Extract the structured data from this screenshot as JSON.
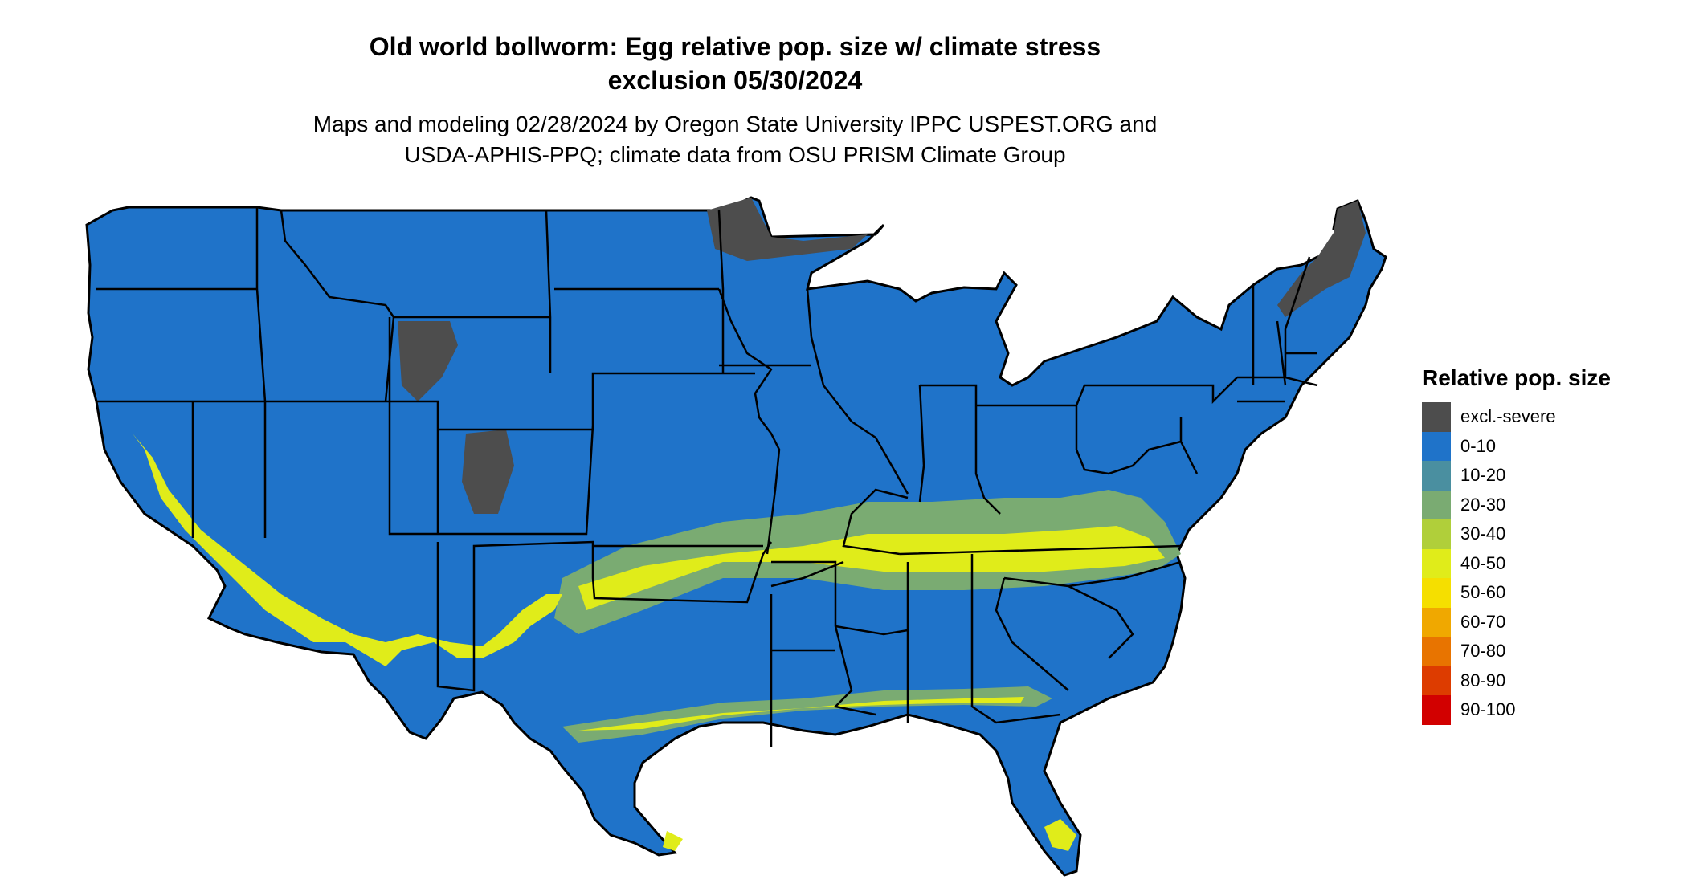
{
  "title": {
    "line1": "Old world bollworm: Egg relative pop. size w/ climate stress",
    "line2": "exclusion 05/30/2024"
  },
  "subtitle": {
    "line1": "Maps and modeling 02/28/2024 by Oregon State University IPPC USPEST.ORG and",
    "line2": "USDA-APHIS-PPQ; climate data from OSU PRISM Climate Group"
  },
  "legend": {
    "title": "Relative pop. size",
    "items": [
      {
        "label": "excl.-severe",
        "color": "#4d4d4d"
      },
      {
        "label": "0-10",
        "color": "#1f73c9"
      },
      {
        "label": "10-20",
        "color": "#4a8fa0"
      },
      {
        "label": "20-30",
        "color": "#7aab72"
      },
      {
        "label": "30-40",
        "color": "#b0cf3a"
      },
      {
        "label": "40-50",
        "color": "#e0ec1a"
      },
      {
        "label": "50-60",
        "color": "#f5df00"
      },
      {
        "label": "60-70",
        "color": "#f0a800"
      },
      {
        "label": "70-80",
        "color": "#e87400"
      },
      {
        "label": "80-90",
        "color": "#dd3c00"
      },
      {
        "label": "90-100",
        "color": "#d20000"
      }
    ]
  },
  "map": {
    "base_color": "#1f73c9",
    "excluded_color": "#4d4d4d",
    "boundary_color": "#000000"
  }
}
